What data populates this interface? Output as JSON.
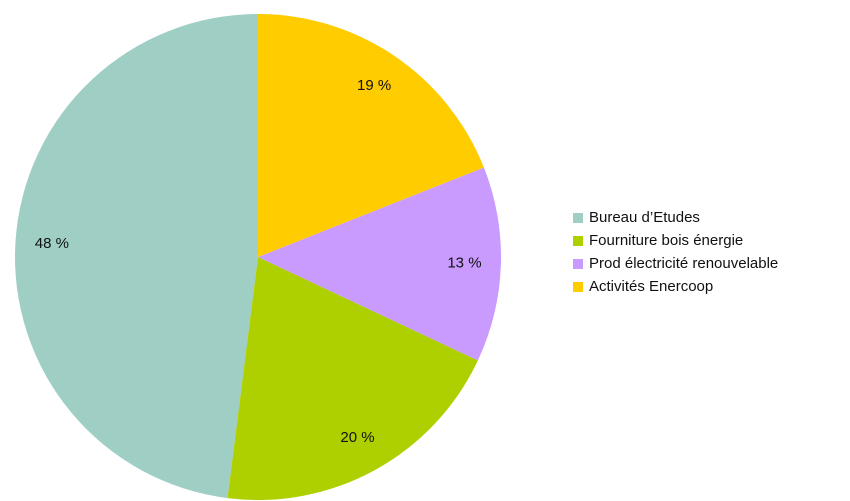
{
  "chart_data": {
    "type": "pie",
    "categories": [
      "Bureau d’Etudes",
      "Fourniture bois énergie",
      "Prod électricité renouvelable",
      "Activités Enercoop"
    ],
    "values": [
      48,
      20,
      13,
      19
    ],
    "value_labels": [
      "48 %",
      "20 %",
      "13 %",
      "19 %"
    ],
    "colors": [
      "#9fcfc4",
      "#aecf00",
      "#c99bff",
      "#ffcc00"
    ],
    "legend": "right"
  }
}
